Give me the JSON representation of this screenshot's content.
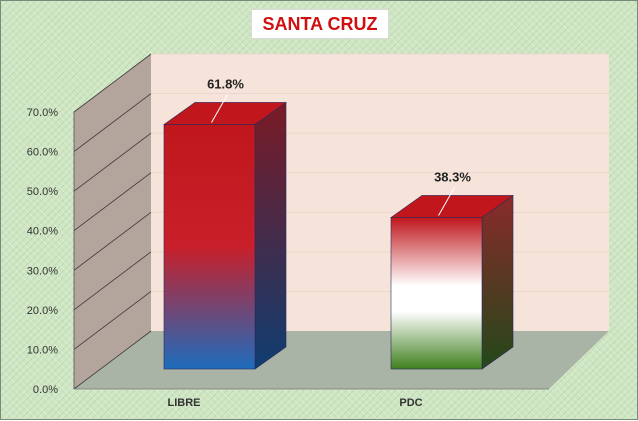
{
  "chart_data": {
    "type": "bar",
    "title": "SANTA CRUZ",
    "categories": [
      "LIBRE",
      "PDC"
    ],
    "values": [
      61.8,
      38.3
    ],
    "data_labels": [
      "61.8%",
      "38.3%"
    ],
    "y_ticks": [
      "0.0%",
      "10.0%",
      "20.0%",
      "30.0%",
      "40.0%",
      "50.0%",
      "60.0%",
      "70.0%"
    ],
    "ylim": [
      0,
      70
    ],
    "three_d": true,
    "grid": true,
    "legend": "none",
    "colors": {
      "libre_top": "#c0161c",
      "libre_mid": "#c81f2a",
      "libre_bottom": "#1e6cbd",
      "pdc_top": "#c0161c",
      "pdc_mid": "#ffffff",
      "pdc_bottom": "#3f7f1e",
      "back_wall": "#f6e4da",
      "side_wall": "#b3a49c",
      "floor": "#a9b4a6"
    }
  }
}
